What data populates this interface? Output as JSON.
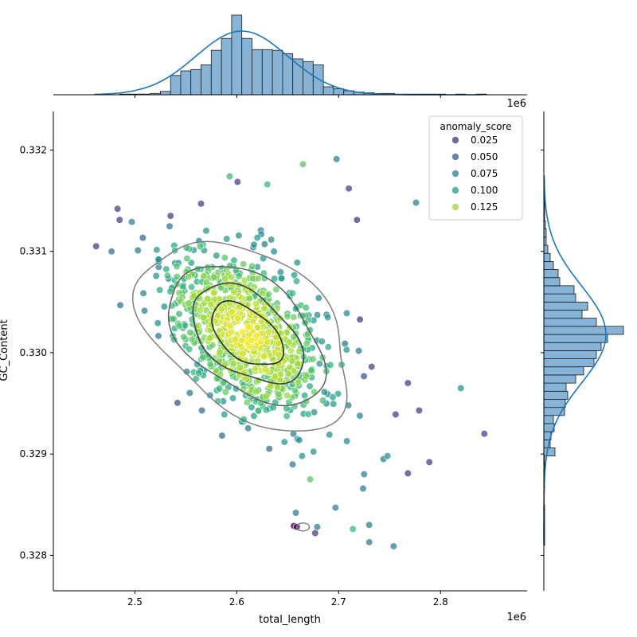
{
  "chart_data": {
    "type": "scatter",
    "subtype": "jointplot with marginal histograms, KDE curves and KDE contours",
    "xlabel": "total_length",
    "ylabel": "GC_Content",
    "x_offset_label": "1e6",
    "xlim": [
      2.42,
      2.885
    ],
    "ylim": [
      0.32765,
      0.33238
    ],
    "x_ticks": [
      2.5,
      2.6,
      2.7,
      2.8
    ],
    "x_tick_labels": [
      "2.5",
      "2.6",
      "2.7",
      "2.8"
    ],
    "y_ticks": [
      0.328,
      0.329,
      0.33,
      0.331,
      0.332
    ],
    "y_tick_labels": [
      "0.328",
      "0.329",
      "0.330",
      "0.331",
      "0.332"
    ],
    "grid": false,
    "legend": {
      "title": "anomaly_score",
      "placement": "top-right",
      "entries": [
        {
          "label": "0.025",
          "color": "#46327e"
        },
        {
          "label": "0.050",
          "color": "#365c8d"
        },
        {
          "label": "0.075",
          "color": "#277f8e"
        },
        {
          "label": "0.100",
          "color": "#1fa187"
        },
        {
          "label": "0.125",
          "color": "#a0da39"
        }
      ]
    },
    "hue_colormap": "viridis",
    "hue_range": [
      0.0,
      0.14
    ],
    "cluster": {
      "center": {
        "x": 2.61,
        "y": 0.33018
      },
      "std": {
        "x": 0.038,
        "y": 0.00042
      },
      "correlation": -0.45,
      "n_points": 900
    },
    "outliers": [
      {
        "x": 2.462,
        "y": 0.33105,
        "score": 0.02
      },
      {
        "x": 2.483,
        "y": 0.33142,
        "score": 0.02
      },
      {
        "x": 2.485,
        "y": 0.33131,
        "score": 0.02
      },
      {
        "x": 2.497,
        "y": 0.33129,
        "score": 0.05
      },
      {
        "x": 2.503,
        "y": 0.33101,
        "score": 0.05
      },
      {
        "x": 2.535,
        "y": 0.33135,
        "score": 0.02
      },
      {
        "x": 2.565,
        "y": 0.33147,
        "score": 0.02
      },
      {
        "x": 2.593,
        "y": 0.33174,
        "score": 0.08
      },
      {
        "x": 2.63,
        "y": 0.33166,
        "score": 0.08
      },
      {
        "x": 2.665,
        "y": 0.33186,
        "score": 0.09
      },
      {
        "x": 2.698,
        "y": 0.33191,
        "score": 0.05
      },
      {
        "x": 2.71,
        "y": 0.33162,
        "score": 0.02
      },
      {
        "x": 2.776,
        "y": 0.33148,
        "score": 0.05
      },
      {
        "x": 2.82,
        "y": 0.32965,
        "score": 0.06
      },
      {
        "x": 2.843,
        "y": 0.3292,
        "score": 0.02
      },
      {
        "x": 2.789,
        "y": 0.32892,
        "score": 0.02
      },
      {
        "x": 2.768,
        "y": 0.3297,
        "score": 0.02
      },
      {
        "x": 2.779,
        "y": 0.32943,
        "score": 0.02
      },
      {
        "x": 2.768,
        "y": 0.32881,
        "score": 0.02
      },
      {
        "x": 2.756,
        "y": 0.32939,
        "score": 0.02
      },
      {
        "x": 2.748,
        "y": 0.32898,
        "score": 0.06
      },
      {
        "x": 2.744,
        "y": 0.32895,
        "score": 0.05
      },
      {
        "x": 2.754,
        "y": 0.32809,
        "score": 0.05
      },
      {
        "x": 2.73,
        "y": 0.32813,
        "score": 0.05
      },
      {
        "x": 2.73,
        "y": 0.3283,
        "score": 0.05
      },
      {
        "x": 2.714,
        "y": 0.32826,
        "score": 0.08
      },
      {
        "x": 2.697,
        "y": 0.32847,
        "score": 0.05
      },
      {
        "x": 2.724,
        "y": 0.32866,
        "score": 0.05
      },
      {
        "x": 2.725,
        "y": 0.3288,
        "score": 0.05
      },
      {
        "x": 2.658,
        "y": 0.32842,
        "score": 0.05
      },
      {
        "x": 2.656,
        "y": 0.32829,
        "score": 0.0
      },
      {
        "x": 2.659,
        "y": 0.32828,
        "score": 0.0
      },
      {
        "x": 2.679,
        "y": 0.32828,
        "score": 0.05
      },
      {
        "x": 2.677,
        "y": 0.32822,
        "score": 0.02
      },
      {
        "x": 2.672,
        "y": 0.32875,
        "score": 0.09
      },
      {
        "x": 2.718,
        "y": 0.33131,
        "score": 0.02
      },
      {
        "x": 2.533,
        "y": 0.33073,
        "score": 0.05
      }
    ],
    "x_marginal_hist": {
      "bin_edges": [
        2.445,
        2.455,
        2.465,
        2.475,
        2.485,
        2.495,
        2.505,
        2.515,
        2.525,
        2.535,
        2.545,
        2.555,
        2.565,
        2.575,
        2.585,
        2.595,
        2.605,
        2.615,
        2.625,
        2.635,
        2.645,
        2.655,
        2.665,
        2.675,
        2.685,
        2.695,
        2.705,
        2.715,
        2.725,
        2.735,
        2.745,
        2.755,
        2.765,
        2.775,
        2.785,
        2.795,
        2.805,
        2.815,
        2.825,
        2.835,
        2.845
      ],
      "counts": [
        0,
        0,
        0,
        0,
        1,
        1,
        1,
        2,
        5,
        29,
        36,
        38,
        45,
        67,
        85,
        120,
        85,
        68,
        68,
        67,
        62,
        54,
        50,
        45,
        12,
        9,
        6,
        4,
        3,
        2,
        2,
        1,
        1,
        1,
        1,
        1,
        0,
        1,
        0,
        1
      ]
    },
    "y_marginal_hist": {
      "bin_edges": [
        0.3281,
        0.32818,
        0.32826,
        0.32834,
        0.32842,
        0.3285,
        0.32858,
        0.32866,
        0.32874,
        0.32882,
        0.3289,
        0.32898,
        0.32906,
        0.32914,
        0.32922,
        0.3293,
        0.32938,
        0.32946,
        0.32954,
        0.32962,
        0.3297,
        0.32978,
        0.32986,
        0.32994,
        0.33002,
        0.3301,
        0.33018,
        0.33026,
        0.33034,
        0.33042,
        0.3305,
        0.33058,
        0.33066,
        0.33074,
        0.33082,
        0.3309,
        0.33098,
        0.33106,
        0.33114,
        0.33122,
        0.3313,
        0.33138,
        0.33146,
        0.33154,
        0.33162,
        0.3317,
        0.33178
      ],
      "counts": [
        1,
        1,
        1,
        1,
        1,
        0,
        0,
        1,
        1,
        1,
        1,
        14,
        8,
        9,
        13,
        12,
        26,
        27,
        30,
        28,
        40,
        50,
        63,
        66,
        72,
        80,
        100,
        66,
        48,
        55,
        40,
        38,
        20,
        18,
        12,
        8,
        5,
        3,
        3,
        2,
        1,
        1,
        1,
        0,
        1,
        0,
        1
      ]
    }
  }
}
